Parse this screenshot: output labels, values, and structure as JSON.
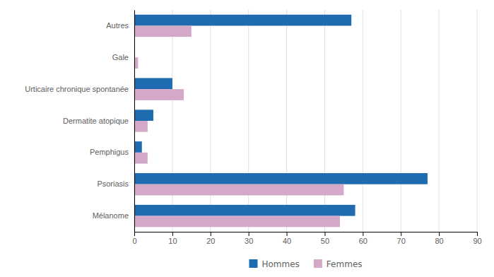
{
  "chart_data": {
    "type": "bar",
    "orientation": "horizontal",
    "categories": [
      "Mélanome",
      "Psoriasis",
      "Pemphigus",
      "Dermatite atopique",
      "Urticaire chronique spontanée",
      "Gale",
      "Autres"
    ],
    "series": [
      {
        "name": "Hommes",
        "color": "#1F6BB0",
        "values": [
          58,
          77,
          2,
          5,
          10,
          0,
          57
        ]
      },
      {
        "name": "Femmes",
        "color": "#D4A8C7",
        "values": [
          54,
          55,
          3.5,
          3.5,
          13,
          1,
          15
        ]
      }
    ],
    "xlim": [
      0,
      90
    ],
    "xticks": [
      0,
      10,
      20,
      30,
      40,
      50,
      60,
      70,
      80,
      90
    ],
    "grid": true,
    "legend": "bottom"
  }
}
